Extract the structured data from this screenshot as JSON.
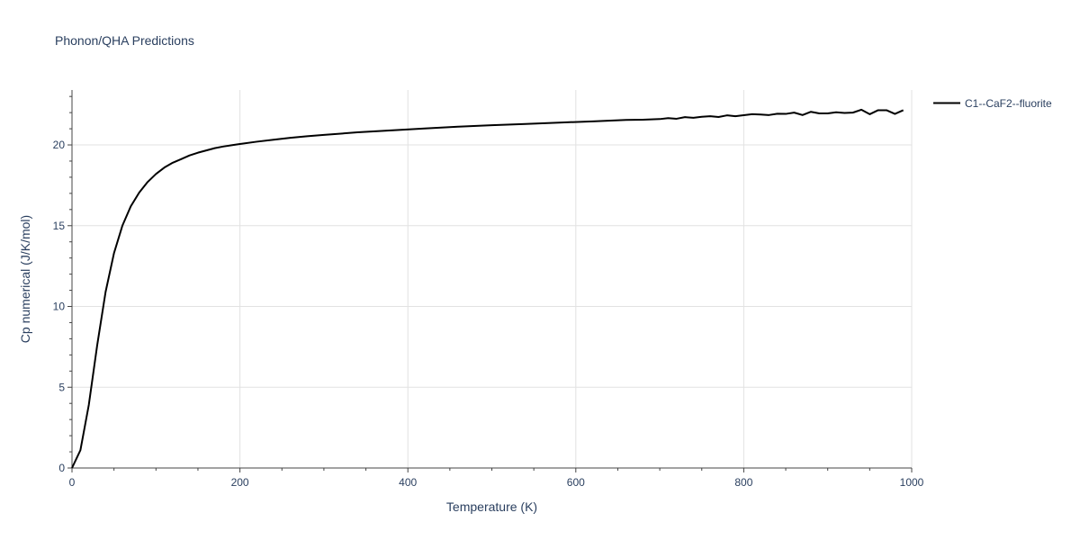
{
  "chart_data": {
    "type": "line",
    "title": "Phonon/QHA Predictions",
    "xlabel": "Temperature (K)",
    "ylabel": "Cp numerical (J/K/mol)",
    "xlim": [
      0,
      1000
    ],
    "ylim": [
      0,
      23.4
    ],
    "x_ticks": [
      0,
      200,
      400,
      600,
      800,
      1000
    ],
    "y_ticks": [
      0,
      5,
      10,
      15,
      20
    ],
    "x_tick_labels": [
      "0",
      "200",
      "400",
      "600",
      "800",
      "1000"
    ],
    "y_tick_labels": [
      "0",
      "5",
      "10",
      "15",
      "20"
    ],
    "grid": true,
    "legend_position": "top-right",
    "series": [
      {
        "name": "C1--CaF2--fluorite",
        "color": "#000000",
        "x": [
          0,
          10,
          20,
          30,
          40,
          50,
          60,
          70,
          80,
          90,
          100,
          110,
          120,
          130,
          140,
          150,
          160,
          170,
          180,
          190,
          200,
          220,
          240,
          260,
          280,
          300,
          340,
          380,
          420,
          460,
          500,
          540,
          580,
          620,
          660,
          680,
          700,
          710,
          720,
          730,
          740,
          750,
          760,
          770,
          780,
          790,
          800,
          810,
          820,
          830,
          840,
          850,
          860,
          870,
          880,
          890,
          900,
          910,
          920,
          930,
          940,
          950,
          960,
          970,
          980,
          990
        ],
        "y": [
          0,
          1.1,
          3.9,
          7.6,
          10.9,
          13.3,
          15.0,
          16.2,
          17.05,
          17.7,
          18.2,
          18.6,
          18.9,
          19.12,
          19.35,
          19.52,
          19.66,
          19.8,
          19.9,
          19.98,
          20.06,
          20.2,
          20.32,
          20.44,
          20.54,
          20.62,
          20.78,
          20.9,
          21.02,
          21.13,
          21.22,
          21.3,
          21.38,
          21.46,
          21.55,
          21.56,
          21.6,
          21.66,
          21.62,
          21.72,
          21.68,
          21.74,
          21.78,
          21.73,
          21.83,
          21.78,
          21.84,
          21.9,
          21.88,
          21.85,
          21.93,
          21.92,
          22.0,
          21.85,
          22.05,
          21.95,
          21.95,
          22.02,
          21.98,
          22.0,
          22.18,
          21.9,
          22.15,
          22.15,
          21.92,
          22.15
        ]
      }
    ]
  }
}
